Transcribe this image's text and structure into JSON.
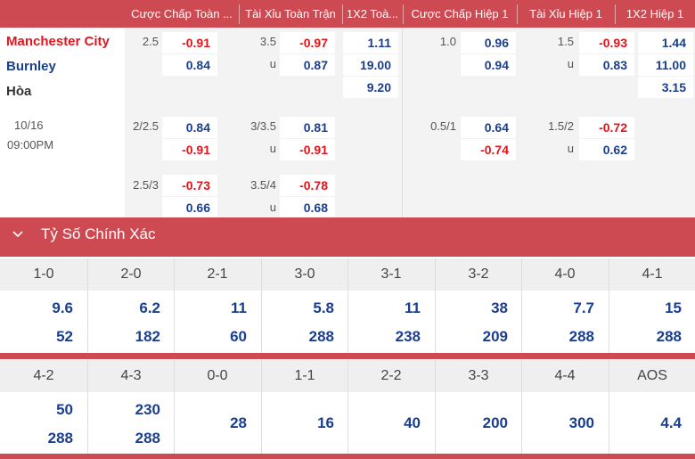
{
  "header": {
    "cols": [
      "Cược Chấp Toàn ...",
      "Tài Xỉu Toàn Trận",
      "1X2 Toà...",
      "Cược Chấp Hiệp 1",
      "Tài Xỉu Hiệp 1",
      "1X2 Hiệp 1"
    ]
  },
  "match": {
    "home": "Manchester City",
    "away": "Burnley",
    "draw": "Hòa",
    "date": "10/16",
    "time": "09:00PM",
    "colors": {
      "home": "#e3141c",
      "away": "#1b3f8f",
      "header_bg": "#cd4a52"
    }
  },
  "odds": {
    "row1": {
      "hcap_ft": "2.5",
      "hcap_ft_home": "-0.91",
      "hcap_ft_away": "0.84",
      "ou_ft": "3.5",
      "ou_ft_over": "-0.97",
      "ou_ft_u": "u",
      "ou_ft_under": "0.87",
      "x12_ft_home": "1.11",
      "x12_ft_away": "19.00",
      "x12_ft_draw": "9.20",
      "hcap_h1": "1.0",
      "hcap_h1_home": "0.96",
      "hcap_h1_away": "0.94",
      "ou_h1": "1.5",
      "ou_h1_over": "-0.93",
      "ou_h1_u": "u",
      "ou_h1_under": "0.83",
      "x12_h1_home": "1.44",
      "x12_h1_away": "11.00",
      "x12_h1_draw": "3.15"
    },
    "row2": {
      "hcap_ft": "2/2.5",
      "hcap_ft_home": "0.84",
      "hcap_ft_away": "-0.91",
      "ou_ft": "3/3.5",
      "ou_ft_over": "0.81",
      "ou_ft_u": "u",
      "ou_ft_under": "-0.91",
      "hcap_h1": "0.5/1",
      "hcap_h1_home": "0.64",
      "hcap_h1_away": "-0.74",
      "ou_h1": "1.5/2",
      "ou_h1_over": "-0.72",
      "ou_h1_u": "u",
      "ou_h1_under": "0.62"
    },
    "row3": {
      "hcap_ft": "2.5/3",
      "hcap_ft_home": "-0.73",
      "hcap_ft_away": "0.66",
      "ou_ft": "3.5/4",
      "ou_ft_over": "-0.78",
      "ou_ft_u": "u",
      "ou_ft_under": "0.68"
    }
  },
  "correct_score": {
    "title": "Tỷ Số Chính Xác",
    "row1": {
      "labels": [
        "1-0",
        "2-0",
        "2-1",
        "3-0",
        "3-1",
        "3-2",
        "4-0",
        "4-1"
      ],
      "home": [
        "9.6",
        "6.2",
        "11",
        "5.8",
        "11",
        "38",
        "7.7",
        "15"
      ],
      "away": [
        "52",
        "182",
        "60",
        "288",
        "238",
        "209",
        "288",
        "288"
      ]
    },
    "row2": {
      "labels": [
        "4-2",
        "4-3",
        "0-0",
        "1-1",
        "2-2",
        "3-3",
        "4-4",
        "AOS"
      ],
      "home": [
        "50",
        "230",
        "",
        "",
        "",
        "",
        "",
        ""
      ],
      "away": [
        "288",
        "288",
        "",
        "",
        "",
        "",
        "",
        ""
      ],
      "single": [
        "",
        "",
        "28",
        "16",
        "40",
        "200",
        "300",
        "4.4"
      ]
    }
  }
}
